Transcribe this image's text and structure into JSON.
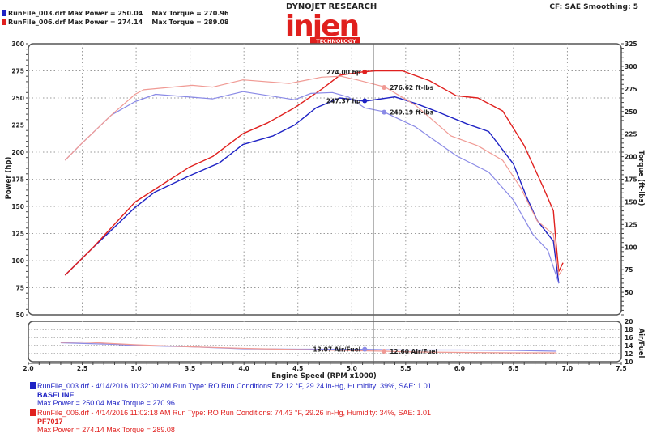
{
  "header": {
    "brand": "DYNOJET RESEARCH",
    "logo": {
      "word": "injen",
      "sub": "TECHNOLOGY"
    },
    "settings": "CF: SAE  Smoothing: 5",
    "runs": [
      {
        "file": "RunFile_003.drf",
        "max_power": "Max Power = 250.04",
        "max_torque": "Max Torque = 270.96"
      },
      {
        "file": "RunFile_006.drf",
        "max_power": "Max Power = 274.14",
        "max_torque": "Max Torque = 289.08"
      }
    ]
  },
  "legend": [
    {
      "line1": "RunFile_003.drf - 4/14/2016 10:32:00 AM  Run Type: RO  Run Conditions: 72.12 °F, 29.24 in-Hg,  Humidity:  39%, SAE: 1.01",
      "line2": "BASELINE",
      "line3": "Max Power = 250.04  Max Torque = 270.96"
    },
    {
      "line1": "RunFile_006.drf - 4/14/2016 11:02:18 AM  Run Type: RO  Run Conditions: 74.43 °F, 29.26 in-Hg,  Humidity:  34%, SAE: 1.01",
      "line2": "PF7017",
      "line3": "Max Power = 274.14  Max Torque = 289.08"
    }
  ],
  "colors": {
    "blue": "#1e22c4",
    "blue_light": "#8a8ae6",
    "red": "#e0201e",
    "red_light": "#f09a94",
    "frame": "#555555"
  },
  "chart_data": {
    "type": "line",
    "xlabel": "Engine Speed (RPM x1000)",
    "xlim": [
      2.0,
      7.5
    ],
    "xticks": [
      2.0,
      2.5,
      3.0,
      3.5,
      4.0,
      4.5,
      5.0,
      5.5,
      6.0,
      6.5,
      7.0,
      7.5
    ],
    "power_axis": {
      "label": "Power (hp)",
      "lim": [
        50,
        300
      ],
      "ticks": [
        50,
        75,
        100,
        125,
        150,
        175,
        200,
        225,
        250,
        275,
        300
      ]
    },
    "torque_axis": {
      "label": "Torque (ft-lbs)",
      "lim": [
        25,
        325
      ],
      "ticks": [
        50,
        75,
        100,
        125,
        150,
        175,
        200,
        225,
        250,
        275,
        300,
        325
      ]
    },
    "afr_axis": {
      "label": "Air/Fuel",
      "lim": [
        10,
        20
      ],
      "ticks": [
        10,
        12,
        14,
        16,
        18,
        20
      ]
    },
    "grid": true,
    "cursor_rpm": 5.2,
    "series": [
      {
        "run": 0,
        "kind": "power",
        "color": "blue",
        "x": [
          2.34,
          2.59,
          2.99,
          3.17,
          3.49,
          3.77,
          3.99,
          4.27,
          4.47,
          4.67,
          4.89,
          5.12,
          5.4,
          5.59,
          5.8,
          6.07,
          6.27,
          6.5,
          6.62,
          6.72,
          6.87,
          6.92
        ],
        "y": [
          86.6,
          111,
          149,
          163,
          178,
          190,
          207,
          215,
          225,
          241,
          250,
          247,
          251,
          245,
          237,
          226,
          219,
          189,
          159,
          137,
          118,
          79
        ]
      },
      {
        "run": 1,
        "kind": "power",
        "color": "red",
        "x": [
          2.34,
          2.59,
          2.99,
          3.49,
          3.71,
          3.99,
          4.22,
          4.47,
          4.72,
          4.89,
          5.1,
          5.22,
          5.47,
          5.72,
          5.97,
          6.17,
          6.4,
          6.6,
          6.77,
          6.87,
          6.89,
          6.92,
          6.96
        ],
        "y": [
          86.6,
          111,
          154,
          186,
          196,
          217,
          227,
          241,
          258,
          271,
          274,
          275,
          275,
          266,
          252,
          250,
          238,
          206,
          169,
          146,
          122,
          90,
          98
        ]
      },
      {
        "run": 0,
        "kind": "torque",
        "color": "blue_light",
        "x": [
          2.34,
          2.49,
          2.77,
          2.99,
          3.18,
          3.71,
          3.99,
          4.47,
          4.62,
          4.82,
          4.97,
          5.12,
          5.29,
          5.59,
          5.97,
          6.27,
          6.5,
          6.68,
          6.82,
          6.92
        ],
        "y": [
          196,
          214,
          246,
          261,
          269,
          264,
          272,
          263,
          270,
          271,
          266,
          254,
          250,
          233,
          201,
          183,
          152,
          114,
          96,
          60
        ]
      },
      {
        "run": 1,
        "kind": "torque",
        "color": "red_light",
        "x": [
          2.34,
          2.49,
          2.77,
          2.99,
          3.07,
          3.52,
          3.71,
          3.99,
          4.42,
          4.72,
          4.9,
          5.05,
          5.31,
          5.59,
          5.92,
          6.17,
          6.4,
          6.57,
          6.72,
          6.87,
          6.92,
          6.96
        ],
        "y": [
          196,
          214,
          246,
          269,
          274,
          279,
          277,
          285,
          281,
          288,
          289,
          285,
          277,
          257,
          223,
          212,
          196,
          165,
          129,
          114,
          69,
          76
        ]
      },
      {
        "run": 0,
        "kind": "afr",
        "color": "blue_light",
        "x": [
          2.3,
          2.8,
          3.0,
          3.5,
          4.0,
          4.5,
          5.1,
          5.5,
          6.0,
          6.5,
          6.9
        ],
        "y": [
          14.7,
          14.3,
          14.0,
          13.7,
          13.2,
          13.1,
          13.07,
          12.9,
          12.9,
          12.8,
          12.6
        ]
      },
      {
        "run": 1,
        "kind": "afr",
        "color": "red_light",
        "x": [
          2.3,
          2.5,
          3.0,
          3.5,
          4.0,
          4.5,
          5.3,
          5.6,
          6.0,
          6.5,
          6.9
        ],
        "y": [
          14.8,
          14.9,
          14.2,
          13.7,
          13.3,
          13.0,
          12.6,
          12.4,
          12.3,
          12.2,
          12.2
        ]
      }
    ],
    "annotations": [
      {
        "text": "274.00 hp",
        "x": 5.12,
        "y": 274.0,
        "axis": "power",
        "color": "red",
        "side": "left"
      },
      {
        "text": "276.62 ft-lbs",
        "x": 5.3,
        "y": 276.6,
        "axis": "torque",
        "color": "red_light",
        "side": "right"
      },
      {
        "text": "247.37 hp",
        "x": 5.12,
        "y": 247.4,
        "axis": "power",
        "color": "blue",
        "side": "left"
      },
      {
        "text": "249.19 ft-lbs",
        "x": 5.3,
        "y": 249.2,
        "axis": "torque",
        "color": "blue_light",
        "side": "right"
      },
      {
        "text": "13.07 Air/Fuel",
        "x": 5.12,
        "y": 13.07,
        "axis": "afr",
        "color": "blue_light",
        "side": "left"
      },
      {
        "text": "12.60 Air/Fuel",
        "x": 5.3,
        "y": 12.6,
        "axis": "afr",
        "color": "red_light",
        "side": "right"
      }
    ]
  }
}
